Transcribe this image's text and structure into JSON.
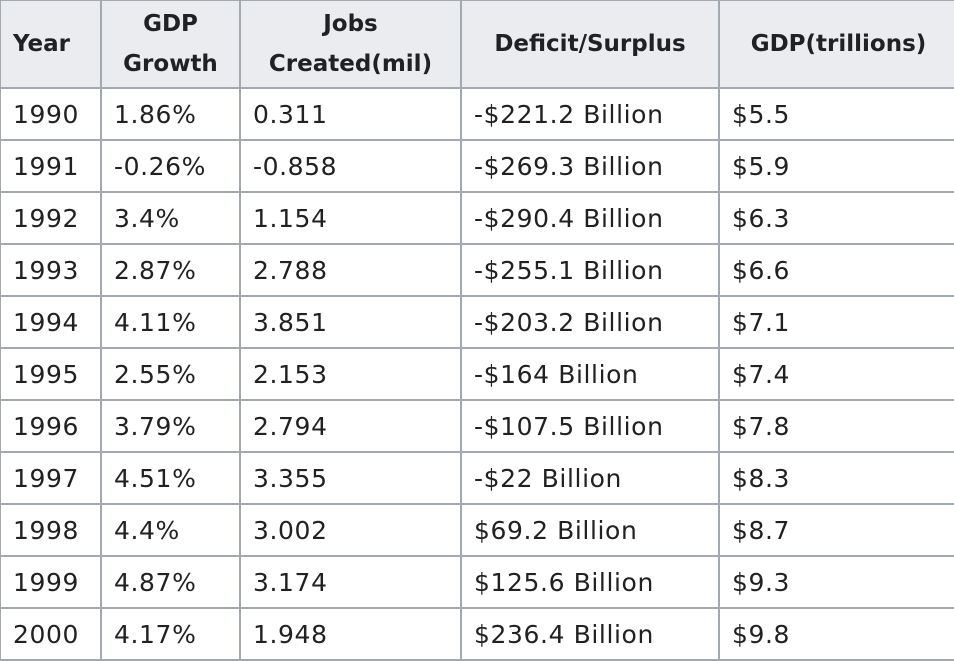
{
  "table": {
    "headers": [
      "Year",
      "GDP Growth",
      "Jobs Created(mil)",
      "Deficit/Surplus",
      "GDP(trillions)"
    ],
    "rows": [
      [
        "1990",
        "1.86%",
        "0.311",
        "-$221.2 Billion",
        "$5.5"
      ],
      [
        "1991",
        "-0.26%",
        "-0.858",
        "-$269.3 Billion",
        "$5.9"
      ],
      [
        "1992",
        "3.4%",
        "1.154",
        "-$290.4 Billion",
        "$6.3"
      ],
      [
        "1993",
        "2.87%",
        "2.788",
        "-$255.1 Billion",
        "$6.6"
      ],
      [
        "1994",
        "4.11%",
        "3.851",
        "-$203.2 Billion",
        "$7.1"
      ],
      [
        "1995",
        "2.55%",
        "2.153",
        "-$164 Billion",
        "$7.4"
      ],
      [
        "1996",
        "3.79%",
        "2.794",
        "-$107.5 Billion",
        "$7.8"
      ],
      [
        "1997",
        "4.51%",
        "3.355",
        "-$22 Billion",
        "$8.3"
      ],
      [
        "1998",
        "4.4%",
        "3.002",
        "$69.2 Billion",
        "$8.7"
      ],
      [
        "1999",
        "4.87%",
        "3.174",
        "$125.6 Billion",
        "$9.3"
      ],
      [
        "2000",
        "4.17%",
        "1.948",
        "$236.4 Billion",
        "$9.8"
      ]
    ]
  }
}
